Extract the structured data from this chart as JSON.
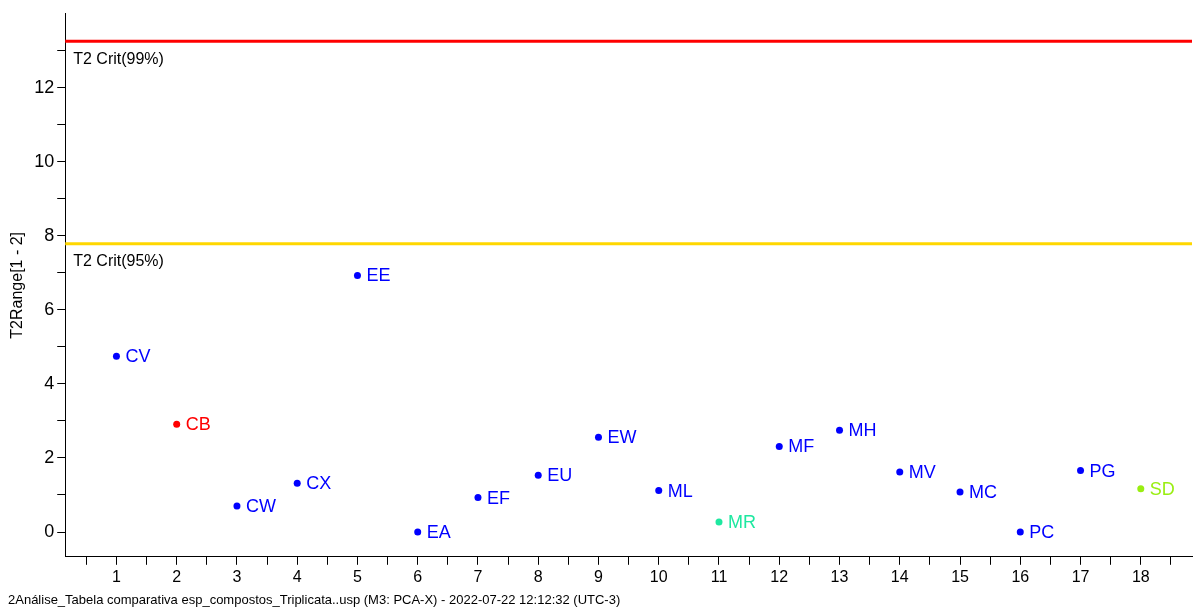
{
  "chart_data": {
    "type": "scatter",
    "ylabel": "T2Range[1 - 2]",
    "x": [
      1,
      2,
      3,
      4,
      5,
      6,
      7,
      8,
      9,
      10,
      11,
      12,
      13,
      14,
      15,
      16,
      17,
      18
    ],
    "values": [
      4.75,
      2.91,
      0.7,
      1.32,
      6.93,
      0,
      0.93,
      1.53,
      2.56,
      1.12,
      0.27,
      2.31,
      2.75,
      1.62,
      1.08,
      0,
      1.66,
      1.17
    ],
    "colors": [
      "#0000ff",
      "#ff0000",
      "#0000ff",
      "#0000ff",
      "#0000ff",
      "#0000ff",
      "#0000ff",
      "#0000ff",
      "#0000ff",
      "#0000ff",
      "#1ee8a0",
      "#0000ff",
      "#0000ff",
      "#0000ff",
      "#0000ff",
      "#0000ff",
      "#0000ff",
      "#99ee11"
    ],
    "xlim": [
      0.15,
      18.85
    ],
    "xticks": [
      {
        "value": 0.5,
        "label": null
      },
      1,
      {
        "value": 1.5,
        "label": null
      },
      2,
      {
        "value": 2.5,
        "label": null
      },
      3,
      {
        "value": 3.5,
        "label": null
      },
      4,
      {
        "value": 4.5,
        "label": null
      },
      5,
      {
        "value": 5.5,
        "label": null
      },
      6,
      {
        "value": 6.5,
        "label": null
      },
      7,
      {
        "value": 7.5,
        "label": null
      },
      8,
      {
        "value": 8.5,
        "label": null
      },
      9,
      {
        "value": 9.5,
        "label": null
      },
      10,
      {
        "value": 10.5,
        "label": null
      },
      11,
      {
        "value": 11.5,
        "label": null
      },
      12,
      {
        "value": 12.5,
        "label": null
      },
      13,
      {
        "value": 13.5,
        "label": null
      },
      14,
      {
        "value": 14.5,
        "label": null
      },
      15,
      {
        "value": 15.5,
        "label": null
      },
      16,
      {
        "value": 16.5,
        "label": null
      },
      17,
      {
        "value": 17.5,
        "label": null
      },
      18,
      {
        "value": 18.5,
        "label": null
      }
    ],
    "ylim": [
      -0.67,
      14
    ],
    "yticks": [
      0,
      {
        "value": 1,
        "label": null
      },
      2,
      {
        "value": 3,
        "label": null
      },
      4,
      {
        "value": 5,
        "label": null
      },
      6,
      {
        "value": 7,
        "label": null
      },
      8,
      {
        "value": 9,
        "label": null
      },
      10,
      {
        "value": 11,
        "label": null
      },
      12,
      {
        "value": 13,
        "label": null
      }
    ],
    "ref_lines": [
      {
        "axis": "y",
        "value": 13.26,
        "label": "T2 Crit(99%)",
        "color": "#ff0000"
      },
      {
        "axis": "y",
        "value": 7.79,
        "label": "T2 Crit(95%)",
        "color": "#ffd700"
      }
    ],
    "annotations": [
      {
        "text": "CV",
        "x": 1,
        "y": 4.75
      },
      {
        "text": "CB",
        "x": 2,
        "y": 2.91
      },
      {
        "text": "CW",
        "x": 3,
        "y": 0.7
      },
      {
        "text": "CX",
        "x": 4,
        "y": 1.32
      },
      {
        "text": "EE",
        "x": 5,
        "y": 6.93
      },
      {
        "text": "EA",
        "x": 6,
        "y": 0
      },
      {
        "text": "EF",
        "x": 7,
        "y": 0.93
      },
      {
        "text": "EU",
        "x": 8,
        "y": 1.53
      },
      {
        "text": "EW",
        "x": 9,
        "y": 2.56
      },
      {
        "text": "ML",
        "x": 10,
        "y": 1.12
      },
      {
        "text": "MR",
        "x": 11,
        "y": 0.27
      },
      {
        "text": "MF",
        "x": 12,
        "y": 2.31
      },
      {
        "text": "MH",
        "x": 13,
        "y": 2.75
      },
      {
        "text": "MV",
        "x": 14,
        "y": 1.62
      },
      {
        "text": "MC",
        "x": 15,
        "y": 1.08
      },
      {
        "text": "PC",
        "x": 16,
        "y": 0
      },
      {
        "text": "PG",
        "x": 17,
        "y": 1.66
      },
      {
        "text": "SD",
        "x": 18,
        "y": 1.17
      },
      "2Análise_Tabela comparativa esp_compostos_Triplicata..usp (M3: PCA-X) - 2022-07-22 12:12:32 (UTC-3)"
    ],
    "marker": "circle",
    "grid": false,
    "legend": false
  }
}
